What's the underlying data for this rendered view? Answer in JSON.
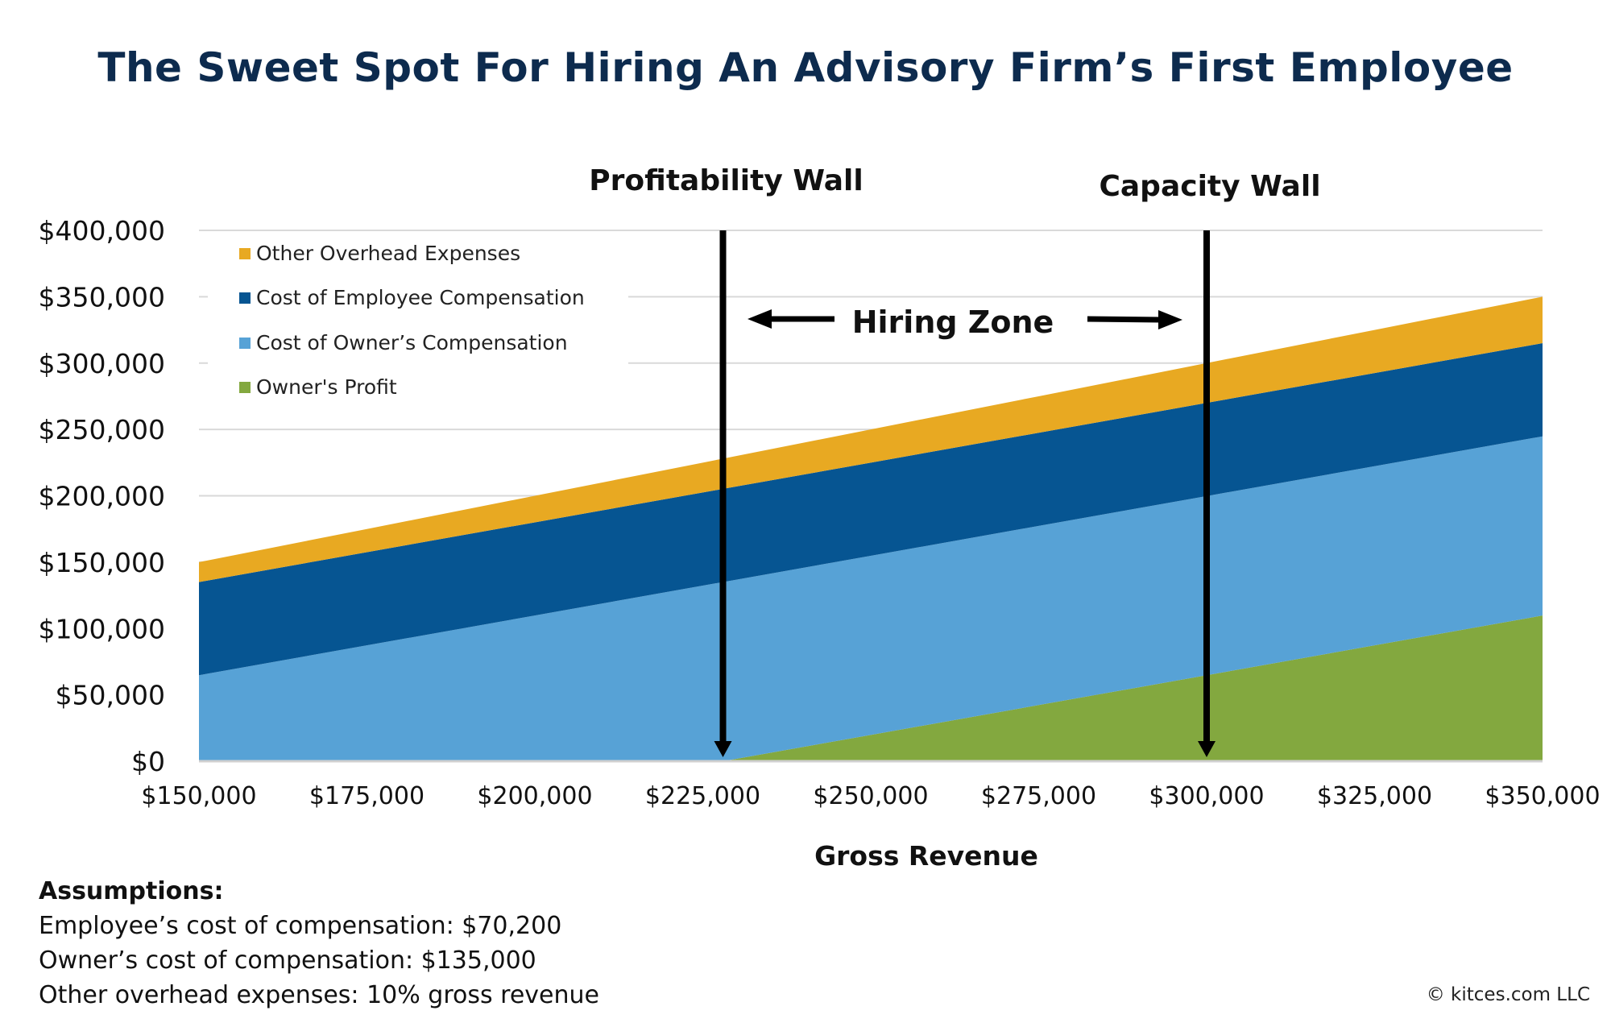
{
  "chart_data": {
    "type": "area",
    "stacked": true,
    "title": "The Sweet Spot For Hiring An Advisory Firm’s First Employee",
    "xlabel": "Gross Revenue",
    "ylabel": "",
    "xlim": [
      150000,
      350000
    ],
    "ylim": [
      0,
      400000
    ],
    "grid": true,
    "legend_position": "top-left",
    "x": [
      150000,
      175000,
      200000,
      225000,
      228000,
      250000,
      275000,
      300000,
      325000,
      350000
    ],
    "x_ticks": [
      "$150,000",
      "$175,000",
      "$200,000",
      "$225,000",
      "$250,000",
      "$275,000",
      "$300,000",
      "$325,000",
      "$350,000"
    ],
    "x_tick_values": [
      150000,
      175000,
      200000,
      225000,
      250000,
      275000,
      300000,
      325000,
      350000
    ],
    "y_ticks": [
      "$0",
      "$50,000",
      "$100,000",
      "$150,000",
      "$200,000",
      "$250,000",
      "$300,000",
      "$350,000",
      "$400,000"
    ],
    "y_tick_values": [
      0,
      50000,
      100000,
      150000,
      200000,
      250000,
      300000,
      350000,
      400000
    ],
    "series": [
      {
        "name": "Owner's Profit",
        "color": "#83a83f",
        "values": [
          0,
          0,
          0,
          0,
          0,
          19800,
          42300,
          64800,
          87300,
          109800
        ]
      },
      {
        "name": "Cost of Owner’s Compensation",
        "color": "#57a2d6",
        "values": [
          64800,
          87300,
          109800,
          132300,
          135000,
          135000,
          135000,
          135000,
          135000,
          135000
        ]
      },
      {
        "name": "Cost of Employee Compensation",
        "color": "#065592",
        "values": [
          70200,
          70200,
          70200,
          70200,
          70200,
          70200,
          70200,
          70200,
          70200,
          70200
        ]
      },
      {
        "name": "Other Overhead Expenses",
        "color": "#e8a922",
        "values": [
          15000,
          17500,
          20000,
          22500,
          22800,
          25000,
          27500,
          30000,
          32500,
          35000
        ]
      }
    ],
    "legend_order": [
      "Other Overhead Expenses",
      "Cost of Employee Compensation",
      "Cost of Owner’s Compensation",
      "Owner's Profit"
    ],
    "annotations": {
      "profitability_wall": {
        "label": "Profitability Wall",
        "x": 228000
      },
      "capacity_wall": {
        "label": "Capacity Wall",
        "x": 300000
      },
      "hiring_zone": "Hiring Zone"
    }
  },
  "assumptions": {
    "heading": "Assumptions:",
    "lines": [
      "Employee’s cost of compensation: $70,200",
      "Owner’s cost of compensation: $135,000",
      "Other overhead expenses: 10% gross revenue"
    ]
  },
  "copyright": "© kitces.com LLC"
}
